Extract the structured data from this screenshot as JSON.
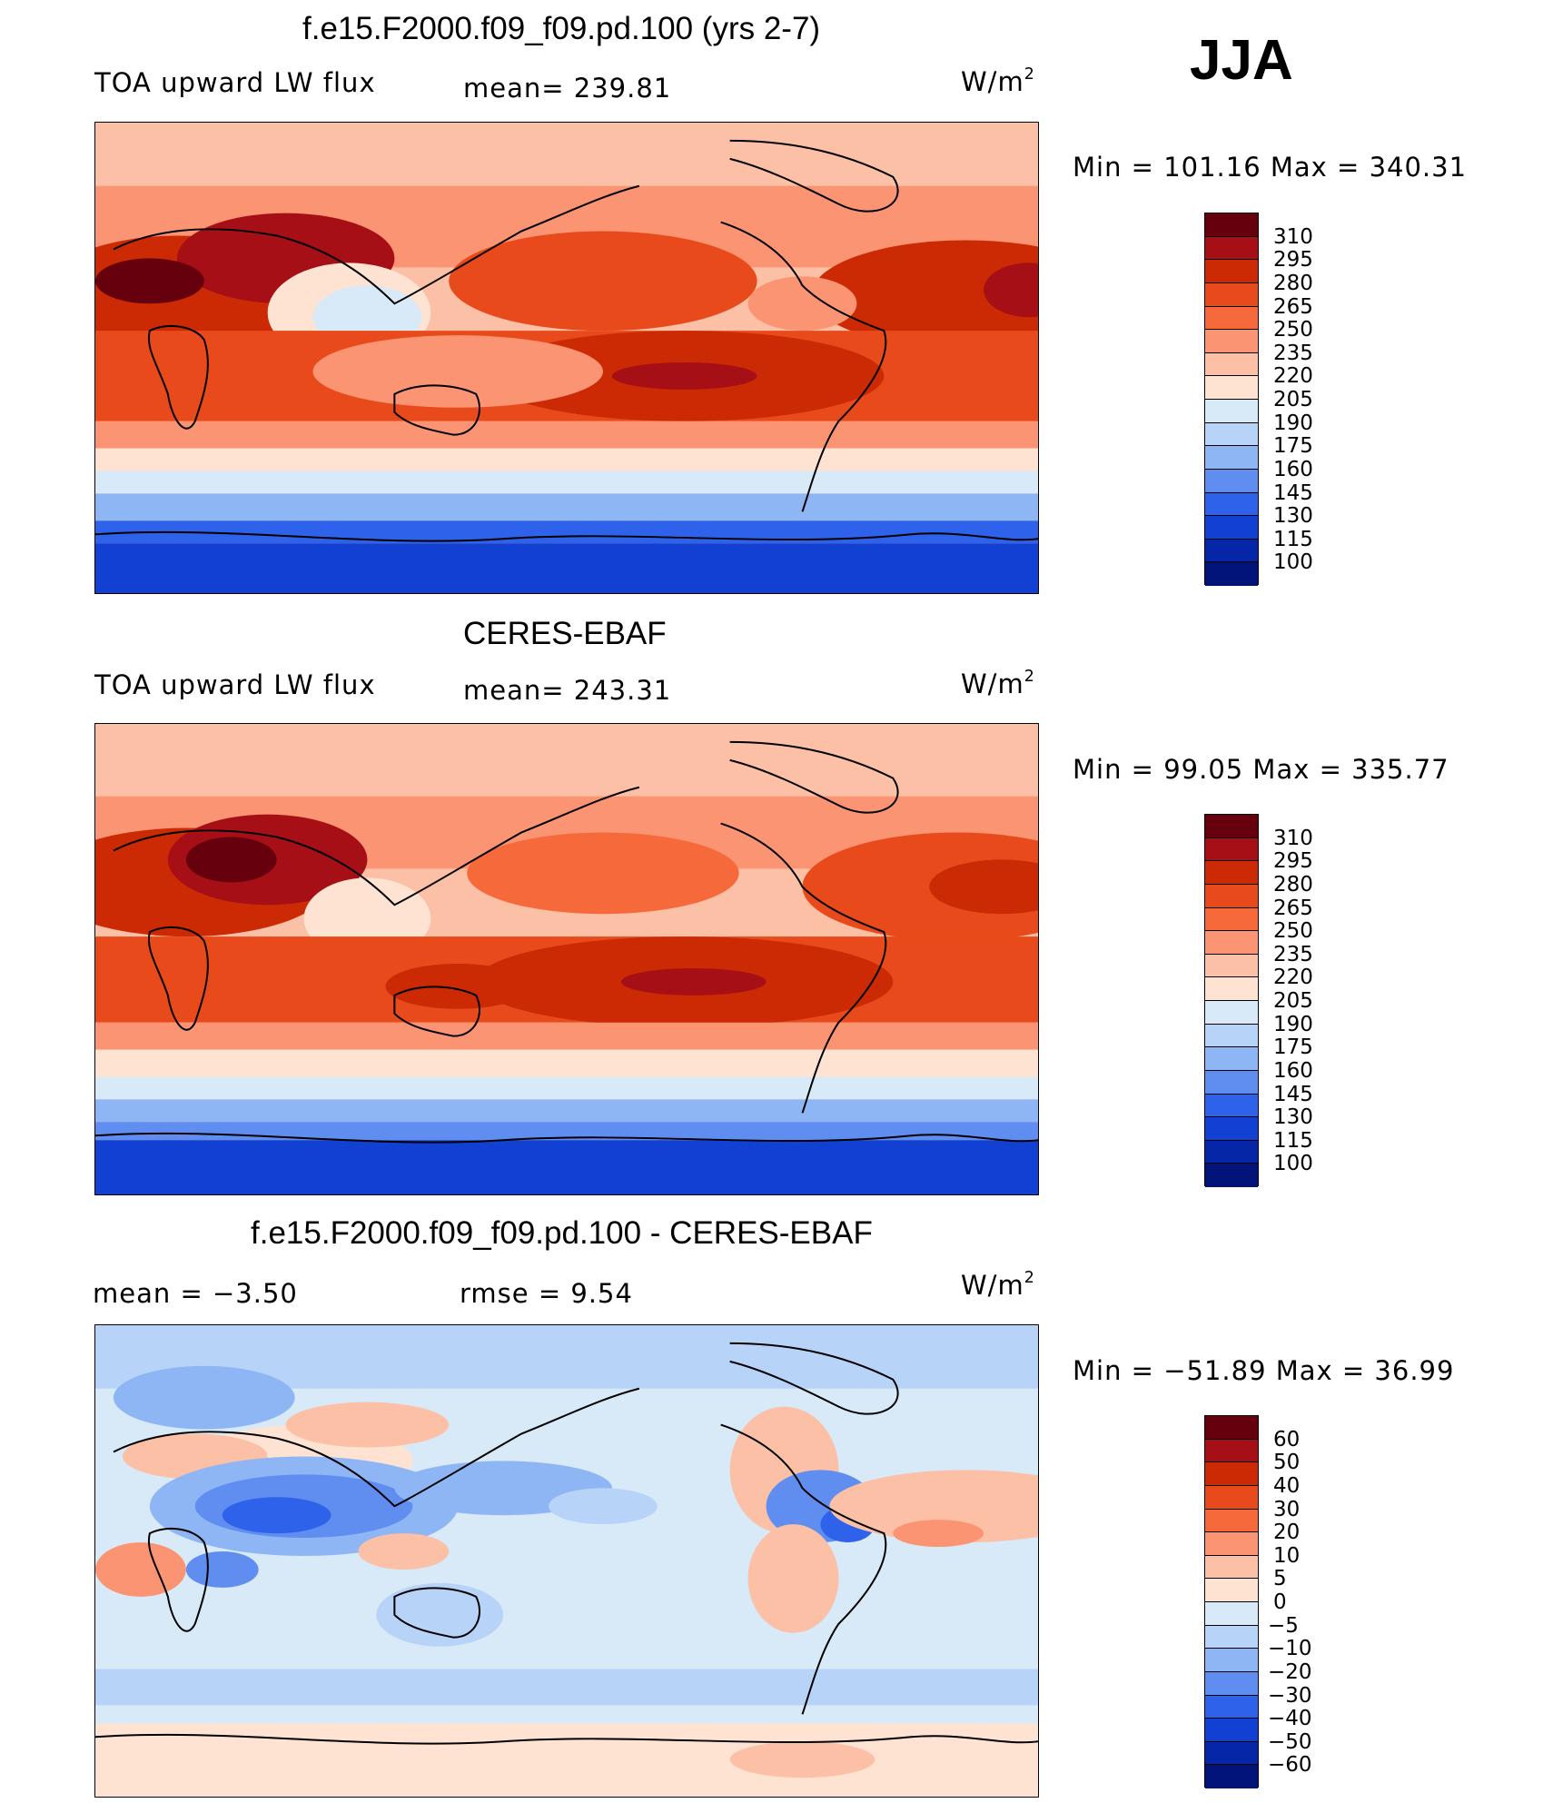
{
  "season": "JJA",
  "units_base": "W/m",
  "units_exp": "2",
  "panels": [
    {
      "title": "f.e15.F2000.f09_f09.pd.100 (yrs 2-7)",
      "field_label": "TOA upward LW flux",
      "stat_left": "",
      "stat_mid": "mean=  239.81",
      "minmax": "Min  =  101.16  Max  =  340.31",
      "colorbar_labels": [
        "310",
        "295",
        "280",
        "265",
        "250",
        "235",
        "220",
        "205",
        "190",
        "175",
        "160",
        "145",
        "130",
        "115",
        "100"
      ],
      "colorbar_colors": [
        "#67000d",
        "#a50f15",
        "#cb2a04",
        "#e84a1b",
        "#f6693a",
        "#fb9472",
        "#fcc0a6",
        "#fee2d2",
        "#d8e9f8",
        "#b7d3f7",
        "#8eb6f5",
        "#5f8ef0",
        "#2f62ea",
        "#1140d3",
        "#0626a8",
        "#02137a"
      ]
    },
    {
      "title": "CERES-EBAF",
      "field_label": "TOA upward LW flux",
      "stat_left": "",
      "stat_mid": "mean=  243.31",
      "minmax": "Min  =    99.05  Max  =  335.77",
      "colorbar_labels": [
        "310",
        "295",
        "280",
        "265",
        "250",
        "235",
        "220",
        "205",
        "190",
        "175",
        "160",
        "145",
        "130",
        "115",
        "100"
      ],
      "colorbar_colors": [
        "#67000d",
        "#a50f15",
        "#cb2a04",
        "#e84a1b",
        "#f6693a",
        "#fb9472",
        "#fcc0a6",
        "#fee2d2",
        "#d8e9f8",
        "#b7d3f7",
        "#8eb6f5",
        "#5f8ef0",
        "#2f62ea",
        "#1140d3",
        "#0626a8",
        "#02137a"
      ]
    },
    {
      "title": "f.e15.F2000.f09_f09.pd.100 - CERES-EBAF",
      "field_label": "",
      "stat_left": "mean  =    −3.50",
      "stat_mid": "rmse  =     9.54",
      "minmax": "Min  =  −51.89  Max  =    36.99",
      "colorbar_labels": [
        "60",
        "50",
        "40",
        "30",
        "20",
        "10",
        "5",
        "0",
        "−5",
        "−10",
        "−20",
        "−30",
        "−40",
        "−50",
        "−60"
      ],
      "colorbar_colors": [
        "#67000d",
        "#a50f15",
        "#cb2a04",
        "#e84a1b",
        "#f6693a",
        "#fb9472",
        "#fcc0a6",
        "#fee2d2",
        "#d8e9f8",
        "#b7d3f7",
        "#8eb6f5",
        "#5f8ef0",
        "#2f62ea",
        "#1140d3",
        "#0626a8",
        "#02137a"
      ]
    }
  ]
}
